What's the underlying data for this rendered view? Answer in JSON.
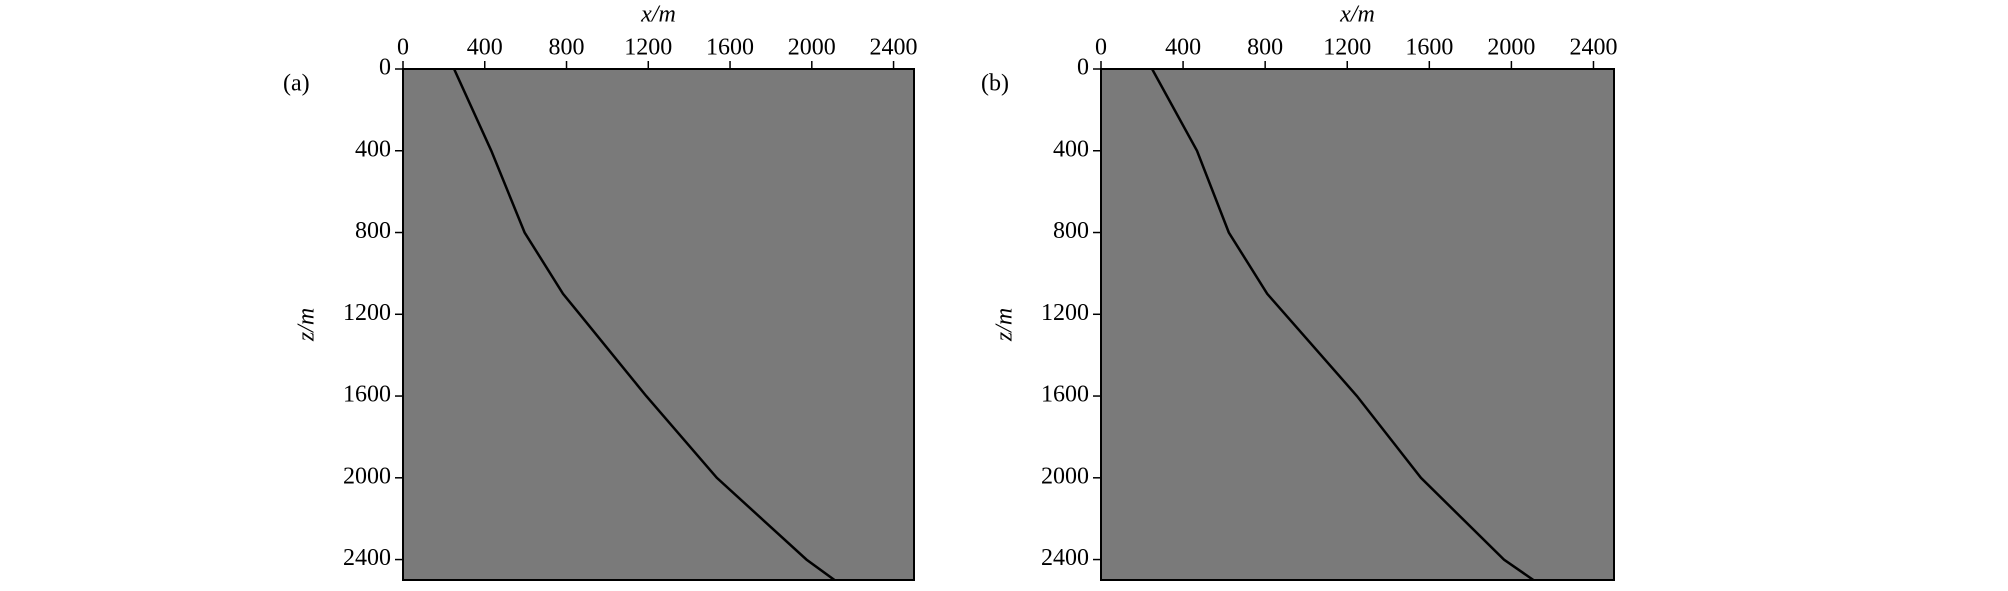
{
  "chart_data": [
    {
      "type": "line",
      "panel_label": "(a)",
      "xlabel": "x/m",
      "ylabel": "z/m",
      "xlim": [
        0,
        2500
      ],
      "ylim": [
        0,
        2500
      ],
      "xticks": [
        0,
        400,
        800,
        1200,
        1600,
        2000,
        2400
      ],
      "yticks": [
        0,
        400,
        800,
        1200,
        1600,
        2000,
        2400
      ],
      "y_inverted": true,
      "x_axis_top": true,
      "background": "#7a7a7a",
      "series": [
        {
          "color": "#000000",
          "x": [
            250,
            432,
            595,
            783,
            865,
            1190,
            1535,
            1974,
            2111
          ],
          "values": [
            0,
            400,
            800,
            1100,
            1200,
            1600,
            2000,
            2400,
            2500
          ]
        }
      ]
    },
    {
      "type": "line",
      "panel_label": "(b)",
      "xlabel": "x/m",
      "ylabel": "z/m",
      "xlim": [
        0,
        2500
      ],
      "ylim": [
        0,
        2500
      ],
      "xticks": [
        0,
        400,
        800,
        1200,
        1600,
        2000,
        2400
      ],
      "yticks": [
        0,
        400,
        800,
        1200,
        1600,
        2000,
        2400
      ],
      "y_inverted": true,
      "x_axis_top": true,
      "background": "#7a7a7a",
      "series": [
        {
          "color": "#000000",
          "x": [
            249,
            468,
            623,
            810,
            1247,
            1559,
            1964,
            2107
          ],
          "values": [
            0,
            400,
            800,
            1100,
            1600,
            2000,
            2400,
            2500
          ]
        }
      ]
    }
  ]
}
